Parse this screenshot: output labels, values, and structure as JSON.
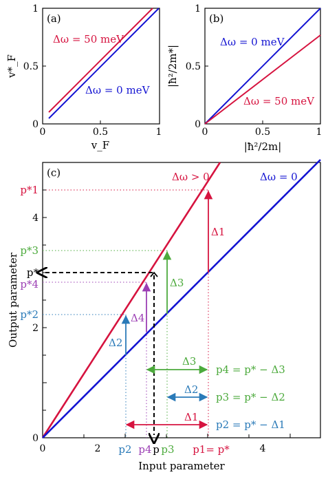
{
  "colors": {
    "red": "#d6133f",
    "blue": "#1414d2",
    "green": "#4caa3c",
    "purple": "#9b3eb4",
    "steel": "#2a7ab8",
    "black": "#000000"
  },
  "panel_a": {
    "tag": "(a)",
    "xlabel": "v_F",
    "ylabel": "v*_F",
    "label_red": "Δω = 50 meV",
    "label_blue": "Δω = 0 meV",
    "xticks": [
      "0",
      "0.5",
      "1"
    ],
    "yticks": [
      "0",
      "0.5",
      "1"
    ]
  },
  "panel_b": {
    "tag": "(b)",
    "xlabel": "|ħ²/2m|",
    "ylabel": "|ħ²/2m*|",
    "label_blue": "Δω = 0 meV",
    "label_red": "Δω = 50 meV",
    "xticks": [
      "0",
      "0.5",
      "1"
    ],
    "yticks": [
      "0",
      "0.5",
      "1"
    ]
  },
  "panel_c": {
    "tag": "(c)",
    "xlabel": "Input parameter",
    "ylabel": "Output parameter",
    "label_red_line": "Δω > 0",
    "label_blue_line": "Δω = 0",
    "xticks": [
      "0",
      "2",
      "4"
    ],
    "yticks": [
      "0",
      "2",
      "4"
    ],
    "left_labels": {
      "p1s": "p*1",
      "p3s": "p*3",
      "ps": "p*",
      "p4s": "p*4",
      "p2s": "p*2"
    },
    "bottom_labels": {
      "p2": "p2",
      "p4": "p4",
      "p": "p",
      "p3": "p3",
      "p1": "p1= p*"
    },
    "deltas": {
      "d1": "Δ1",
      "d2": "Δ2",
      "d3": "Δ3",
      "d4": "Δ4"
    },
    "equations": {
      "eq4": "p4 = p* − Δ3",
      "eq3": "p3 = p* − Δ2",
      "eq2": "p2 = p* − Δ1"
    }
  },
  "chart_data": [
    {
      "type": "line",
      "title": "(a)",
      "xlabel": "v_F",
      "ylabel": "v*_F",
      "xlim": [
        0,
        1
      ],
      "ylim": [
        0,
        1
      ],
      "series": [
        {
          "name": "Δω = 50 meV",
          "x": [
            0.05,
            0.95
          ],
          "y": [
            0.1,
            1.0
          ]
        },
        {
          "name": "Δω = 0 meV",
          "x": [
            0.05,
            1.0
          ],
          "y": [
            0.05,
            1.0
          ]
        }
      ]
    },
    {
      "type": "line",
      "title": "(b)",
      "xlabel": "|ħ²/2m|",
      "ylabel": "|ħ²/2m*|",
      "xlim": [
        0,
        1
      ],
      "ylim": [
        0,
        1
      ],
      "series": [
        {
          "name": "Δω = 0 meV",
          "x": [
            0,
            1
          ],
          "y": [
            0,
            1
          ]
        },
        {
          "name": "Δω = 50 meV",
          "x": [
            0,
            1
          ],
          "y": [
            0,
            0.77
          ]
        }
      ]
    },
    {
      "type": "line",
      "title": "(c)",
      "xlabel": "Input parameter",
      "ylabel": "Output parameter",
      "xlim": [
        0,
        5
      ],
      "ylim": [
        0,
        5
      ],
      "series": [
        {
          "name": "Δω > 0",
          "x": [
            0,
            3.8
          ],
          "y": [
            0,
            5.4
          ]
        },
        {
          "name": "Δω = 0",
          "x": [
            0,
            5
          ],
          "y": [
            0,
            5
          ]
        }
      ],
      "points": {
        "p1": 3.0,
        "p3": 2.3,
        "p": 2.0,
        "p4": 1.9,
        "p2": 1.5,
        "p1_star": 4.5,
        "p3_star": 3.4,
        "p_star": 3.0,
        "p4_star": 2.85,
        "p2_star": 2.2
      }
    }
  ]
}
